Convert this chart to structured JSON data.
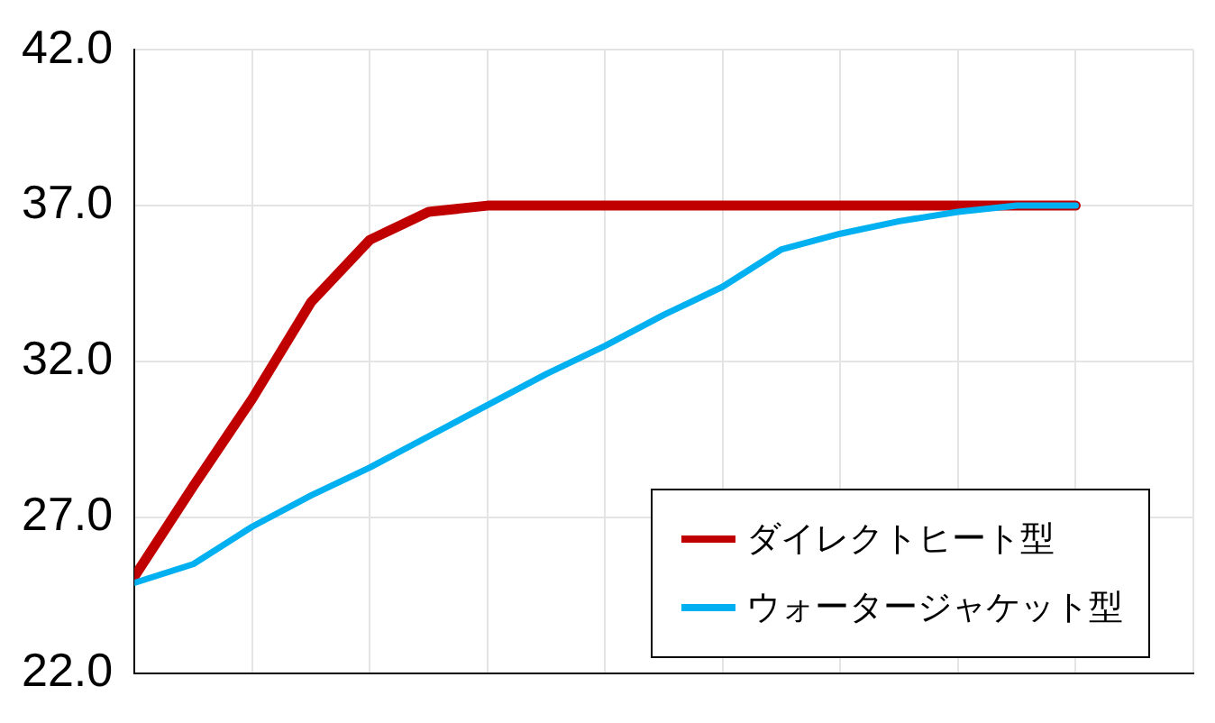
{
  "chart_data": {
    "type": "line",
    "categories": [
      null,
      null,
      null,
      null,
      null,
      null,
      null,
      null,
      null,
      null,
      null,
      null,
      null,
      null,
      null,
      null,
      null
    ],
    "series": [
      {
        "name": "ダイレクトヒート型",
        "color": "#c00000",
        "values": [
          25.1,
          28.0,
          30.8,
          33.9,
          35.9,
          36.8,
          37.0,
          37.0,
          37.0,
          37.0,
          37.0,
          37.0,
          37.0,
          37.0,
          37.0,
          37.0,
          37.0
        ]
      },
      {
        "name": "ウォータージャケット型",
        "color": "#00b0f0",
        "values": [
          24.9,
          25.5,
          26.7,
          27.7,
          28.6,
          29.6,
          30.6,
          31.6,
          32.5,
          33.5,
          34.4,
          35.6,
          36.1,
          36.5,
          36.8,
          37.0,
          37.0
        ]
      }
    ],
    "ylim": [
      22,
      42
    ],
    "yticks": [
      {
        "value": 22,
        "label": "22.0"
      },
      {
        "value": 27,
        "label": "27.0"
      },
      {
        "value": 32,
        "label": "32.0"
      },
      {
        "value": 37,
        "label": "37.0"
      },
      {
        "value": 42,
        "label": "42.0"
      }
    ],
    "tick_labels": "y",
    "grid": true,
    "legend": "bottom right",
    "marker": "none",
    "line_style": "solid"
  }
}
